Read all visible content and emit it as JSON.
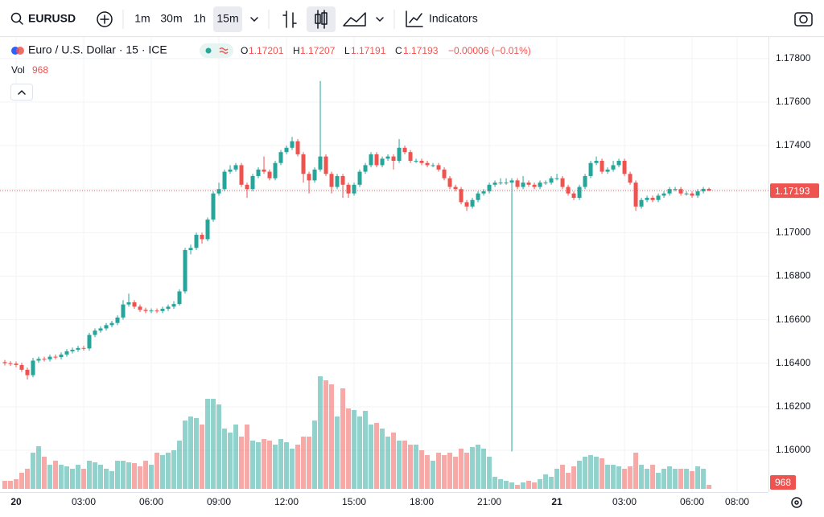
{
  "toolbar": {
    "symbol": "EURUSD",
    "intervals": [
      "1m",
      "30m",
      "1h",
      "15m"
    ],
    "indicators": "Indicators"
  },
  "legend": {
    "title": "Euro / U.S. Dollar · 15 · ICE",
    "open_label": "O",
    "high_label": "H",
    "low_label": "L",
    "close_label": "C",
    "change": "−0.00006 (−0.01%)",
    "volume_label": "Vol"
  },
  "chart_data": {
    "type": "candlestick",
    "x": [
      -0.5,
      -0.25,
      0,
      0.25,
      0.5,
      0.75,
      1,
      1.25,
      1.5,
      1.75,
      2,
      2.25,
      2.5,
      2.75,
      3,
      3.25,
      3.5,
      3.75,
      4,
      4.25,
      4.5,
      4.75,
      5,
      5.25,
      5.5,
      5.75,
      6,
      6.25,
      6.5,
      6.75,
      7,
      7.25,
      7.5,
      7.75,
      8,
      8.25,
      8.5,
      8.75,
      9,
      9.25,
      9.5,
      9.75,
      10,
      10.25,
      10.5,
      10.75,
      11,
      11.25,
      11.5,
      11.75,
      12,
      12.25,
      12.5,
      12.75,
      13,
      13.25,
      13.5,
      13.75,
      14,
      14.25,
      14.5,
      14.75,
      15,
      15.25,
      15.5,
      15.75,
      16,
      16.25,
      16.5,
      16.75,
      17,
      17.25,
      17.5,
      17.75,
      18,
      18.25,
      18.5,
      18.75,
      19,
      19.25,
      19.5,
      19.75,
      20,
      20.25,
      20.5,
      20.75,
      21,
      21.25,
      21.5,
      21.75,
      22,
      22.25,
      22.5,
      22.75,
      23,
      23.25,
      23.5,
      23.75,
      24,
      24.25,
      24.5,
      24.75,
      25,
      25.25,
      25.5,
      25.75,
      26,
      26.25,
      26.5,
      26.75,
      27,
      27.25,
      27.5,
      27.75,
      28,
      28.25,
      28.5,
      28.75,
      29,
      29.25,
      29.5,
      29.75,
      30,
      30.25,
      30.5,
      30.75
    ],
    "open": [
      1.16405,
      1.164,
      1.16398,
      1.16392,
      1.1637,
      1.16345,
      1.16412,
      1.1642,
      1.16418,
      1.1643,
      1.16428,
      1.1644,
      1.16455,
      1.16462,
      1.1647,
      1.16468,
      1.1653,
      1.1655,
      1.1656,
      1.16575,
      1.16585,
      1.1661,
      1.1667,
      1.1668,
      1.1666,
      1.16645,
      1.1664,
      1.16642,
      1.1664,
      1.1665,
      1.1666,
      1.16672,
      1.1673,
      1.1692,
      1.1693,
      1.1699,
      1.1697,
      1.1706,
      1.1718,
      1.172,
      1.1728,
      1.1729,
      1.1731,
      1.1722,
      1.172,
      1.1726,
      1.1729,
      1.1728,
      1.1725,
      1.1732,
      1.1737,
      1.1739,
      1.1742,
      1.1736,
      1.1727,
      1.1724,
      1.1729,
      1.1735,
      1.1727,
      1.1721,
      1.1726,
      1.1722,
      1.1718,
      1.1722,
      1.1728,
      1.1731,
      1.1736,
      1.1731,
      1.1734,
      1.1735,
      1.1733,
      1.1739,
      1.1737,
      1.1733,
      1.1733,
      1.1732,
      1.1731,
      1.1731,
      1.1729,
      1.1725,
      1.1721,
      1.172,
      1.1714,
      1.1712,
      1.1715,
      1.1718,
      1.1719,
      1.1722,
      1.1723,
      1.1723,
      1.1723,
      1.1724,
      1.1721,
      1.1723,
      1.1722,
      1.1721,
      1.1723,
      1.1723,
      1.1725,
      1.1725,
      1.1721,
      1.1718,
      1.1716,
      1.1721,
      1.1726,
      1.1732,
      1.1733,
      1.1728,
      1.1729,
      1.1731,
      1.1733,
      1.1727,
      1.1723,
      1.1712,
      1.1715,
      1.1716,
      1.1715,
      1.1717,
      1.1718,
      1.172,
      1.172,
      1.1718,
      1.1718,
      1.1717,
      1.1719,
      1.17201
    ],
    "high": [
      1.16415,
      1.1641,
      1.16408,
      1.16402,
      1.1638,
      1.16425,
      1.1643,
      1.1643,
      1.1644,
      1.1644,
      1.1645,
      1.16465,
      1.16472,
      1.1648,
      1.1648,
      1.1654,
      1.1656,
      1.1657,
      1.16585,
      1.16595,
      1.1662,
      1.1669,
      1.1672,
      1.1669,
      1.1667,
      1.16655,
      1.16652,
      1.16652,
      1.1666,
      1.1667,
      1.16685,
      1.1674,
      1.1693,
      1.16945,
      1.17,
      1.17,
      1.1707,
      1.1719,
      1.1723,
      1.1729,
      1.1731,
      1.1732,
      1.1732,
      1.1723,
      1.1727,
      1.173,
      1.1735,
      1.1729,
      1.1733,
      1.1738,
      1.174,
      1.1744,
      1.1743,
      1.1737,
      1.1728,
      1.173,
      1.17697,
      1.1736,
      1.1728,
      1.1727,
      1.1727,
      1.1723,
      1.1723,
      1.1729,
      1.1732,
      1.1737,
      1.1737,
      1.1735,
      1.1736,
      1.1736,
      1.1743,
      1.174,
      1.1738,
      1.1734,
      1.1734,
      1.1733,
      1.1732,
      1.1732,
      1.173,
      1.1726,
      1.1722,
      1.1721,
      1.1715,
      1.1716,
      1.1719,
      1.172,
      1.1723,
      1.1724,
      1.1725,
      1.1725,
      1.1725,
      1.1725,
      1.1726,
      1.1724,
      1.1723,
      1.1724,
      1.1724,
      1.1726,
      1.1727,
      1.1726,
      1.1722,
      1.1719,
      1.1722,
      1.1727,
      1.1733,
      1.1735,
      1.1734,
      1.173,
      1.1733,
      1.1734,
      1.1734,
      1.1728,
      1.1724,
      1.1716,
      1.1717,
      1.1717,
      1.1718,
      1.1719,
      1.1721,
      1.1721,
      1.1721,
      1.1719,
      1.1719,
      1.172,
      1.1721,
      1.17207
    ],
    "low": [
      1.1639,
      1.16388,
      1.16382,
      1.1636,
      1.16325,
      1.16335,
      1.16402,
      1.16408,
      1.16408,
      1.16418,
      1.16418,
      1.1643,
      1.16445,
      1.16452,
      1.16458,
      1.16458,
      1.1652,
      1.1654,
      1.1655,
      1.16565,
      1.16575,
      1.166,
      1.1666,
      1.1665,
      1.16635,
      1.1663,
      1.1663,
      1.1663,
      1.1663,
      1.1664,
      1.1665,
      1.16665,
      1.1672,
      1.169,
      1.1692,
      1.1695,
      1.1696,
      1.1705,
      1.1717,
      1.1719,
      1.1727,
      1.1728,
      1.1721,
      1.1716,
      1.1719,
      1.1725,
      1.1727,
      1.1724,
      1.1724,
      1.1731,
      1.1736,
      1.1738,
      1.1735,
      1.1723,
      1.1718,
      1.1723,
      1.1728,
      1.1726,
      1.1718,
      1.172,
      1.1716,
      1.1716,
      1.1717,
      1.1721,
      1.1727,
      1.173,
      1.173,
      1.173,
      1.1733,
      1.1729,
      1.1732,
      1.1736,
      1.1732,
      1.1732,
      1.1731,
      1.173,
      1.173,
      1.1728,
      1.1724,
      1.172,
      1.1719,
      1.1713,
      1.171,
      1.1711,
      1.1714,
      1.1717,
      1.1718,
      1.1721,
      1.1722,
      1.1722,
      1.15995,
      1.172,
      1.172,
      1.1721,
      1.172,
      1.172,
      1.1722,
      1.1722,
      1.1724,
      1.172,
      1.1717,
      1.1715,
      1.1715,
      1.172,
      1.1725,
      1.1731,
      1.1727,
      1.1727,
      1.1728,
      1.173,
      1.1726,
      1.1722,
      1.171,
      1.1711,
      1.1714,
      1.1714,
      1.1714,
      1.1716,
      1.1717,
      1.1719,
      1.1717,
      1.1717,
      1.1716,
      1.1716,
      1.1718,
      1.17191
    ],
    "close": [
      1.164,
      1.16398,
      1.16392,
      1.1637,
      1.16345,
      1.16412,
      1.1642,
      1.16418,
      1.1643,
      1.16428,
      1.1644,
      1.16455,
      1.16462,
      1.1647,
      1.16468,
      1.1653,
      1.1655,
      1.1656,
      1.16575,
      1.16585,
      1.1661,
      1.1667,
      1.1668,
      1.1666,
      1.16645,
      1.1664,
      1.16642,
      1.1664,
      1.1665,
      1.1666,
      1.16672,
      1.1673,
      1.1692,
      1.1693,
      1.1699,
      1.1697,
      1.1706,
      1.1718,
      1.172,
      1.1728,
      1.1729,
      1.1731,
      1.1722,
      1.172,
      1.1726,
      1.1729,
      1.1728,
      1.1725,
      1.1732,
      1.1737,
      1.1739,
      1.1742,
      1.1736,
      1.1727,
      1.1724,
      1.1729,
      1.1735,
      1.1727,
      1.1721,
      1.1726,
      1.1722,
      1.1718,
      1.1722,
      1.1728,
      1.1731,
      1.1736,
      1.1731,
      1.1734,
      1.1735,
      1.1733,
      1.1739,
      1.1737,
      1.1733,
      1.1733,
      1.1732,
      1.1731,
      1.1731,
      1.1729,
      1.1725,
      1.1721,
      1.172,
      1.1714,
      1.1712,
      1.1715,
      1.1718,
      1.1719,
      1.1722,
      1.1723,
      1.1723,
      1.1723,
      1.1724,
      1.1721,
      1.1723,
      1.1722,
      1.1721,
      1.1723,
      1.1723,
      1.1725,
      1.1725,
      1.1721,
      1.1718,
      1.1716,
      1.1721,
      1.1726,
      1.1732,
      1.1733,
      1.1728,
      1.1729,
      1.1731,
      1.1733,
      1.1727,
      1.1723,
      1.1712,
      1.1715,
      1.1716,
      1.1715,
      1.1717,
      1.1718,
      1.172,
      1.172,
      1.1718,
      1.1718,
      1.1717,
      1.1719,
      1.17201,
      1.17193
    ],
    "volume": [
      1940,
      1940,
      2330,
      3880,
      4850,
      8730,
      10280,
      7760,
      5820,
      6790,
      5820,
      5430,
      4850,
      5820,
      4850,
      6790,
      6400,
      5820,
      4850,
      4270,
      6790,
      6790,
      6400,
      6210,
      5430,
      6790,
      5820,
      8730,
      8150,
      8730,
      9310,
      11640,
      16490,
      17460,
      17070,
      15520,
      21730,
      21730,
      20370,
      14550,
      13580,
      15520,
      12610,
      15520,
      11640,
      11250,
      12030,
      11640,
      10670,
      12030,
      11250,
      9700,
      10670,
      12610,
      12610,
      16490,
      27160,
      26190,
      25220,
      17460,
      24250,
      19400,
      19010,
      17460,
      18820,
      15520,
      15910,
      14550,
      12610,
      13580,
      11640,
      11640,
      10670,
      10670,
      9310,
      8150,
      6790,
      8730,
      8150,
      8730,
      7760,
      9700,
      8730,
      10090,
      10670,
      9700,
      7760,
      2910,
      2330,
      1940,
      1550,
      970,
      1550,
      1940,
      1550,
      2330,
      3490,
      2910,
      4850,
      5820,
      3880,
      5430,
      6790,
      7760,
      8150,
      7760,
      7370,
      5820,
      5820,
      5430,
      4850,
      5430,
      8730,
      5820,
      4850,
      5820,
      3880,
      4850,
      5430,
      4850,
      4850,
      4850,
      4270,
      5430,
      4850,
      968
    ],
    "up_color": "#26a69a",
    "down_color": "#ef5350",
    "xlim": [
      -0.714,
      33.39
    ],
    "xticks": [
      {
        "value": 0,
        "label": "20"
      },
      {
        "value": 3,
        "label": "03:00"
      },
      {
        "value": 6,
        "label": "06:00"
      },
      {
        "value": 9,
        "label": "09:00"
      },
      {
        "value": 12,
        "label": "12:00"
      },
      {
        "value": 15,
        "label": "15:00"
      },
      {
        "value": 18,
        "label": "18:00"
      },
      {
        "value": 21,
        "label": "21:00"
      },
      {
        "value": 24,
        "label": "21"
      },
      {
        "value": 27,
        "label": "03:00"
      },
      {
        "value": 30,
        "label": "06:00"
      },
      {
        "value": 32,
        "label": "08:00"
      }
    ],
    "ylim": [
      1.15808,
      1.17899
    ],
    "yticks": [
      {
        "value": 1.16,
        "label": "1.16000"
      },
      {
        "value": 1.162,
        "label": "1.16200"
      },
      {
        "value": 1.164,
        "label": "1.16400"
      },
      {
        "value": 1.166,
        "label": "1.16600"
      },
      {
        "value": 1.168,
        "label": "1.16800"
      },
      {
        "value": 1.17,
        "label": "1.17000"
      },
      {
        "value": 1.172,
        "label": "1.17200"
      },
      {
        "value": 1.174,
        "label": "1.17400"
      },
      {
        "value": 1.176,
        "label": "1.17600"
      },
      {
        "value": 1.178,
        "label": "1.17800"
      }
    ],
    "grid": true
  }
}
